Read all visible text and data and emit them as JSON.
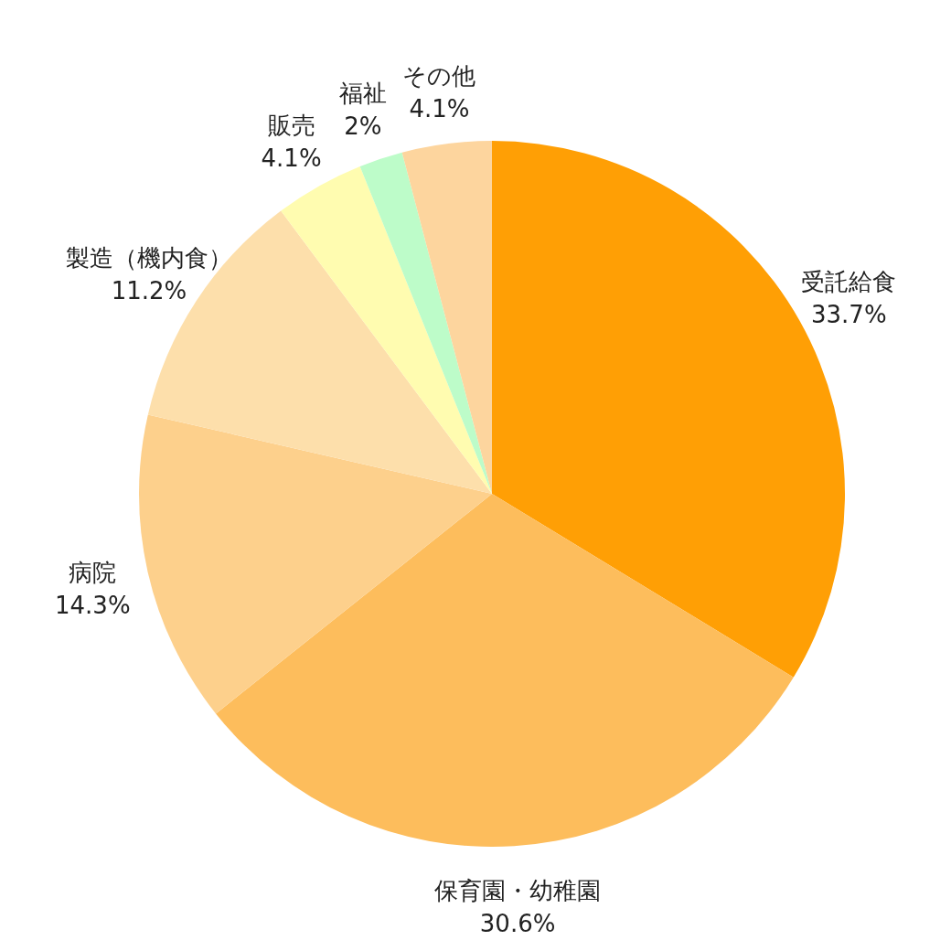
{
  "chart_data": {
    "type": "pie",
    "categories": [
      "受託給食",
      "保育園・幼稚園",
      "病院",
      "製造（機内食）",
      "販売",
      "福祉",
      "その他"
    ],
    "values": [
      33.7,
      30.6,
      14.3,
      11.2,
      4.1,
      2,
      4.1
    ],
    "value_labels": [
      "33.7%",
      "30.6%",
      "14.3%",
      "11.2%",
      "4.1%",
      "2%",
      "4.1%"
    ],
    "colors": [
      "#ff9f05",
      "#fdbd5c",
      "#fdd08c",
      "#fddfab",
      "#fffcb0",
      "#bdfcc9",
      "#fdd59e"
    ]
  }
}
